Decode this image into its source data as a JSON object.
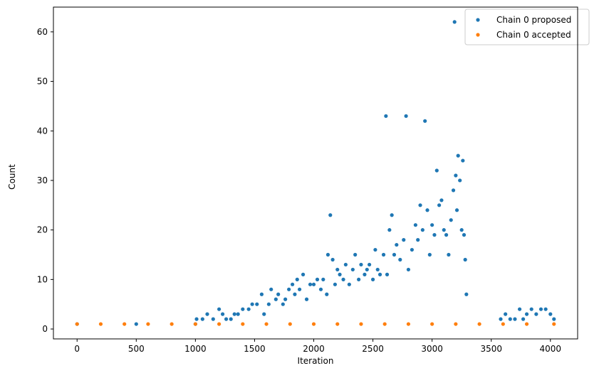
{
  "chart_data": {
    "type": "scatter",
    "xlabel": "Iteration",
    "ylabel": "Count",
    "xlim": [
      -200,
      4230
    ],
    "ylim": [
      -2,
      65
    ],
    "xticks": [
      0,
      500,
      1000,
      1500,
      2000,
      2500,
      3000,
      3500,
      4000
    ],
    "yticks": [
      0,
      10,
      20,
      30,
      40,
      50,
      60
    ],
    "grid": false,
    "legend_position": "top-right",
    "colors": {
      "proposed": "#1f77b4",
      "accepted": "#ff7f0e"
    },
    "series": [
      {
        "name": "Chain 0 proposed",
        "points": [
          [
            0,
            1
          ],
          [
            500,
            1
          ],
          [
            1000,
            1
          ],
          [
            1010,
            2
          ],
          [
            1060,
            2
          ],
          [
            1100,
            3
          ],
          [
            1150,
            2
          ],
          [
            1200,
            4
          ],
          [
            1230,
            3
          ],
          [
            1260,
            2
          ],
          [
            1300,
            2
          ],
          [
            1330,
            3
          ],
          [
            1360,
            3
          ],
          [
            1400,
            4
          ],
          [
            1450,
            4
          ],
          [
            1480,
            5
          ],
          [
            1520,
            5
          ],
          [
            1560,
            7
          ],
          [
            1580,
            3
          ],
          [
            1620,
            5
          ],
          [
            1640,
            8
          ],
          [
            1680,
            6
          ],
          [
            1700,
            7
          ],
          [
            1740,
            5
          ],
          [
            1760,
            6
          ],
          [
            1790,
            8
          ],
          [
            1820,
            9
          ],
          [
            1840,
            7
          ],
          [
            1860,
            10
          ],
          [
            1880,
            8
          ],
          [
            1910,
            11
          ],
          [
            1940,
            6
          ],
          [
            1970,
            9
          ],
          [
            2000,
            9
          ],
          [
            2030,
            10
          ],
          [
            2060,
            8
          ],
          [
            2080,
            10
          ],
          [
            2110,
            7
          ],
          [
            2120,
            15
          ],
          [
            2140,
            23
          ],
          [
            2160,
            14
          ],
          [
            2180,
            9
          ],
          [
            2200,
            12
          ],
          [
            2220,
            11
          ],
          [
            2250,
            10
          ],
          [
            2270,
            13
          ],
          [
            2300,
            9
          ],
          [
            2330,
            12
          ],
          [
            2350,
            15
          ],
          [
            2380,
            10
          ],
          [
            2400,
            13
          ],
          [
            2430,
            11
          ],
          [
            2450,
            12
          ],
          [
            2470,
            13
          ],
          [
            2500,
            10
          ],
          [
            2520,
            16
          ],
          [
            2540,
            12
          ],
          [
            2560,
            11
          ],
          [
            2590,
            15
          ],
          [
            2610,
            43
          ],
          [
            2620,
            11
          ],
          [
            2640,
            20
          ],
          [
            2660,
            23
          ],
          [
            2680,
            15
          ],
          [
            2700,
            17
          ],
          [
            2730,
            14
          ],
          [
            2760,
            18
          ],
          [
            2780,
            43
          ],
          [
            2800,
            12
          ],
          [
            2830,
            16
          ],
          [
            2860,
            21
          ],
          [
            2880,
            18
          ],
          [
            2900,
            25
          ],
          [
            2920,
            20
          ],
          [
            2940,
            42
          ],
          [
            2960,
            24
          ],
          [
            2980,
            15
          ],
          [
            3000,
            21
          ],
          [
            3020,
            19
          ],
          [
            3040,
            32
          ],
          [
            3060,
            25
          ],
          [
            3080,
            26
          ],
          [
            3100,
            20
          ],
          [
            3120,
            19
          ],
          [
            3140,
            15
          ],
          [
            3160,
            22
          ],
          [
            3180,
            28
          ],
          [
            3190,
            62
          ],
          [
            3200,
            31
          ],
          [
            3210,
            24
          ],
          [
            3220,
            35
          ],
          [
            3235,
            30
          ],
          [
            3250,
            20
          ],
          [
            3260,
            34
          ],
          [
            3270,
            19
          ],
          [
            3280,
            14
          ],
          [
            3290,
            7
          ],
          [
            3580,
            2
          ],
          [
            3620,
            3
          ],
          [
            3660,
            2
          ],
          [
            3700,
            2
          ],
          [
            3740,
            4
          ],
          [
            3770,
            2
          ],
          [
            3800,
            3
          ],
          [
            3840,
            4
          ],
          [
            3880,
            3
          ],
          [
            3920,
            4
          ],
          [
            3960,
            4
          ],
          [
            4000,
            3
          ],
          [
            4030,
            2
          ]
        ]
      },
      {
        "name": "Chain 0 accepted",
        "points": [
          [
            0,
            1
          ],
          [
            200,
            1
          ],
          [
            400,
            1
          ],
          [
            600,
            1
          ],
          [
            800,
            1
          ],
          [
            1000,
            1
          ],
          [
            1200,
            1
          ],
          [
            1400,
            1
          ],
          [
            1600,
            1
          ],
          [
            1800,
            1
          ],
          [
            2000,
            1
          ],
          [
            2200,
            1
          ],
          [
            2400,
            1
          ],
          [
            2600,
            1
          ],
          [
            2800,
            1
          ],
          [
            3000,
            1
          ],
          [
            3200,
            1
          ],
          [
            3400,
            1
          ],
          [
            3600,
            1
          ],
          [
            3800,
            1
          ],
          [
            4030,
            1
          ]
        ]
      }
    ]
  }
}
